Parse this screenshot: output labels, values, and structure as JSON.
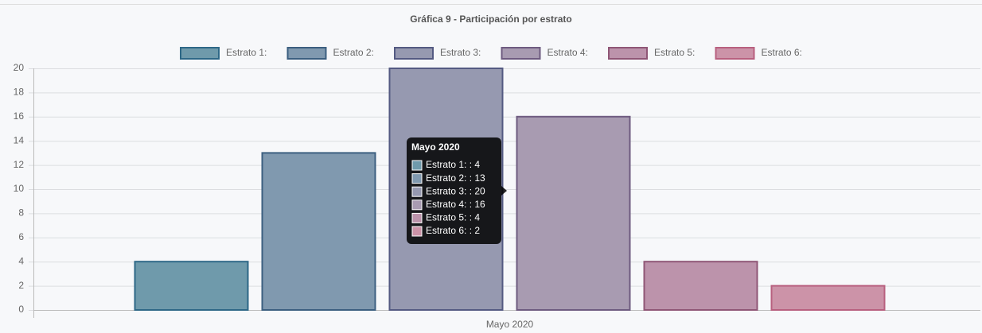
{
  "chart_data": {
    "type": "bar",
    "title": "Gráfica 9 - Participación por estrato",
    "categories": [
      "Mayo 2020"
    ],
    "series": [
      {
        "name": "Estrato 1:",
        "color": "#6f9aab",
        "border_color": "#2e6887",
        "values": [
          4
        ]
      },
      {
        "name": "Estrato 2:",
        "color": "#8099af",
        "border_color": "#3c5f80",
        "values": [
          13
        ]
      },
      {
        "name": "Estrato 3:",
        "color": "#9699b0",
        "border_color": "#545a82",
        "values": [
          20
        ]
      },
      {
        "name": "Estrato 4:",
        "color": "#a89bb1",
        "border_color": "#6e5b80",
        "values": [
          16
        ]
      },
      {
        "name": "Estrato 5:",
        "color": "#bc93ab",
        "border_color": "#8f5676",
        "values": [
          4
        ]
      },
      {
        "name": "Estrato 6:",
        "color": "#cc93a8",
        "border_color": "#b8607f",
        "values": [
          2
        ]
      }
    ],
    "ylim": [
      0,
      20
    ],
    "yticks": [
      0,
      2,
      4,
      6,
      8,
      10,
      12,
      14,
      16,
      18,
      20
    ],
    "grid": true,
    "legend": "top",
    "tooltip": {
      "title": "Mayo 2020",
      "lines": [
        "Estrato 1: : 4",
        "Estrato 2: : 13",
        "Estrato 3: : 20",
        "Estrato 4: : 16",
        "Estrato 5: : 4",
        "Estrato 6: : 2"
      ]
    }
  }
}
